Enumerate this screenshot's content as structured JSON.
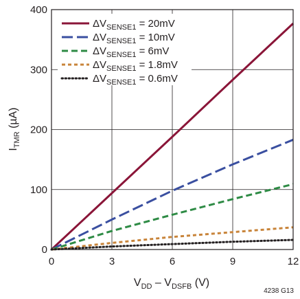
{
  "chart_data": {
    "type": "line",
    "xlabel": {
      "main": "V",
      "sub1": "DD",
      "mid": " – V",
      "sub2": "DSFB",
      "unit": " (V)"
    },
    "ylabel": {
      "main": "I",
      "sub": "TMR",
      "unit": " (µA)"
    },
    "xlim": [
      0,
      12
    ],
    "ylim": [
      0,
      400
    ],
    "xticks": [
      "0",
      "3",
      "6",
      "9",
      "12"
    ],
    "xtick_values": [
      0,
      3,
      6,
      9,
      12
    ],
    "yticks": [
      "0",
      "100",
      "200",
      "300",
      "400"
    ],
    "ytick_values": [
      0,
      100,
      200,
      300,
      400
    ],
    "grid": true,
    "legend_position": "top-left",
    "note": "4238 G13",
    "series": [
      {
        "name": "ΔVSENSE1 = 20mV",
        "label_main": "ΔV",
        "label_sub": "SENSE1",
        "label_rest": " = 20mV",
        "color": "#8a1538",
        "dash": "solid",
        "x": [
          0,
          3,
          6,
          9,
          12
        ],
        "y": [
          0,
          94,
          188,
          283,
          377
        ]
      },
      {
        "name": "ΔVSENSE1 = 10mV",
        "label_main": "ΔV",
        "label_sub": "SENSE1",
        "label_rest": " = 10mV",
        "color": "#3a4fa0",
        "dash": "longdash",
        "x": [
          0,
          3,
          6,
          9,
          12
        ],
        "y": [
          0,
          50,
          98,
          142,
          183
        ]
      },
      {
        "name": "ΔVSENSE1 = 6mV",
        "label_main": "ΔV",
        "label_sub": "SENSE1",
        "label_rest": " = 6mV",
        "color": "#2e8b45",
        "dash": "dash",
        "x": [
          0,
          3,
          6,
          9,
          12
        ],
        "y": [
          0,
          31,
          58,
          84,
          109
        ]
      },
      {
        "name": "ΔVSENSE1 = 1.8mV",
        "label_main": "ΔV",
        "label_sub": "SENSE1",
        "label_rest": " = 1.8mV",
        "color": "#c8843a",
        "dash": "shortdash",
        "x": [
          0,
          3,
          6,
          9,
          12
        ],
        "y": [
          0,
          11,
          21,
          29,
          37
        ]
      },
      {
        "name": "ΔVSENSE1 = 0.6mV",
        "label_main": "ΔV",
        "label_sub": "SENSE1",
        "label_rest": " = 0.6mV",
        "color": "#231f20",
        "dash": "dot",
        "x": [
          0,
          3,
          6,
          9,
          12
        ],
        "y": [
          0,
          5,
          9,
          13,
          16
        ]
      }
    ]
  }
}
